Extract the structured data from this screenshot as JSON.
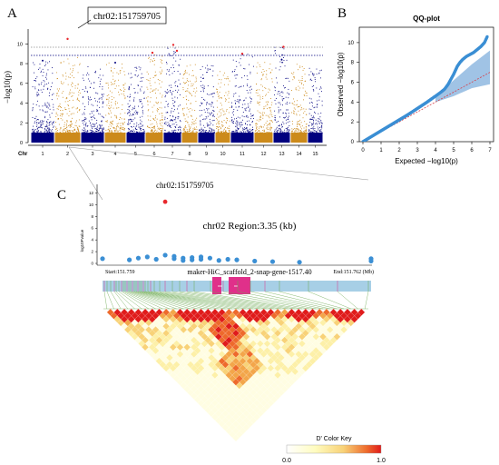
{
  "panels": {
    "a_label": "A",
    "b_label": "B",
    "c_label": "C"
  },
  "chart_data": [
    {
      "type": "scatter",
      "panel": "A",
      "kind": "manhattan",
      "title": "",
      "ylabel": "−log10(p)",
      "xlabel": "Chr",
      "chromosomes": [
        "1",
        "2",
        "3",
        "4",
        "5",
        "6",
        "7",
        "8",
        "9",
        "10",
        "11",
        "12",
        "13",
        "14",
        "15"
      ],
      "yticks": [
        0,
        2,
        4,
        6,
        8,
        10
      ],
      "ylim": [
        0,
        11.5
      ],
      "suggestive_line": 8.1,
      "genomewide_line": 8.8,
      "colors": [
        "#00007f",
        "#cc8a1a"
      ],
      "top_peak_heights": [
        8.3,
        8.7,
        7.8,
        8.2,
        7.7,
        9.0,
        9.8,
        8.0,
        7.9,
        7.3,
        9.0,
        8.2,
        9.7,
        8.0,
        7.6
      ],
      "significant_hits": [
        {
          "chr": "2",
          "value": 10.5,
          "label": "chr02:151759705"
        },
        {
          "chr": "6",
          "value": 9.1
        },
        {
          "chr": "7",
          "value": 9.9
        },
        {
          "chr": "7",
          "value": 9.3
        },
        {
          "chr": "11",
          "value": 9.0
        },
        {
          "chr": "13",
          "value": 9.7
        }
      ],
      "annotation": "chr02:151759705"
    },
    {
      "type": "scatter",
      "panel": "B",
      "kind": "qq",
      "title": "QQ-plot",
      "xlabel": "Expected  −log10(p)",
      "ylabel": "Observed  −log10(p)",
      "xlim": [
        0,
        7
      ],
      "ylim": [
        0,
        11
      ],
      "xticks": [
        0,
        1,
        2,
        3,
        4,
        5,
        6,
        7
      ],
      "yticks": [
        0,
        2,
        4,
        6,
        8,
        10
      ],
      "points": [
        [
          0,
          0
        ],
        [
          0.5,
          0.55
        ],
        [
          1,
          1.1
        ],
        [
          1.5,
          1.65
        ],
        [
          2,
          2.2
        ],
        [
          2.5,
          2.75
        ],
        [
          3,
          3.35
        ],
        [
          3.5,
          3.95
        ],
        [
          4,
          4.6
        ],
        [
          4.3,
          5.0
        ],
        [
          4.5,
          5.3
        ],
        [
          4.7,
          5.8
        ],
        [
          4.85,
          6.3
        ],
        [
          5,
          6.8
        ],
        [
          5.1,
          7.2
        ],
        [
          5.2,
          7.6
        ],
        [
          5.35,
          8.0
        ],
        [
          5.5,
          8.3
        ],
        [
          5.7,
          8.6
        ],
        [
          5.9,
          8.8
        ],
        [
          6.1,
          9.0
        ],
        [
          6.3,
          9.3
        ],
        [
          6.5,
          9.6
        ],
        [
          6.7,
          10.0
        ],
        [
          6.85,
          10.6
        ]
      ],
      "ci_upper": [
        [
          4,
          4.6
        ],
        [
          5,
          6.2
        ],
        [
          6,
          7.8
        ],
        [
          7,
          9.2
        ]
      ],
      "ci_lower": [
        [
          4,
          4.0
        ],
        [
          5,
          4.6
        ],
        [
          6,
          5.4
        ],
        [
          7,
          5.8
        ]
      ],
      "reference_line": [
        [
          0,
          0
        ],
        [
          7,
          7
        ]
      ],
      "point_color": "#3b8fd4",
      "ci_color": "#8fb9e0",
      "line_color": "#d6404a"
    },
    {
      "type": "scatter",
      "panel": "C",
      "kind": "regional",
      "title": "chr02 Region:3.35 (kb)",
      "ylabel": "log10Pvalue",
      "yticks": [
        0,
        2,
        4,
        6,
        8,
        10,
        12
      ],
      "ylim": [
        0,
        13
      ],
      "xlim": [
        151.759,
        151.762
      ],
      "lead_snp": {
        "x": 151.7597,
        "y": 10.5,
        "label": "chr02:151759705"
      },
      "points": [
        [
          151.759,
          0.8
        ],
        [
          151.7593,
          0.6
        ],
        [
          151.7594,
          0.9
        ],
        [
          151.7595,
          1.1
        ],
        [
          151.7596,
          0.7
        ],
        [
          151.7597,
          1.4
        ],
        [
          151.7598,
          0.8
        ],
        [
          151.7598,
          1.2
        ],
        [
          151.7599,
          0.9
        ],
        [
          151.7599,
          0.5
        ],
        [
          151.76,
          1.0
        ],
        [
          151.76,
          0.6
        ],
        [
          151.7601,
          0.7
        ],
        [
          151.7601,
          1.1
        ],
        [
          151.7602,
          0.9
        ],
        [
          151.7603,
          0.5
        ],
        [
          151.7604,
          0.7
        ],
        [
          151.7605,
          0.6
        ],
        [
          151.7607,
          0.4
        ],
        [
          151.7609,
          0.3
        ],
        [
          151.7612,
          0.2
        ],
        [
          151.762,
          0.8
        ],
        [
          151.762,
          0.4
        ]
      ],
      "start_label": "Start:151.759",
      "end_label": "End:151.762 (Mb)",
      "gene_label": "maker-HiC_scaffold_2-snap-gene-1517.40",
      "point_color": "#3b8fd4",
      "lead_color": "#e8282d",
      "gene_bar_color": "#a7cfe6",
      "exon_color": "#e0308a",
      "ld_legend_title": "D' Color Key",
      "ld_legend_min": "0.0",
      "ld_legend_max": "1.0",
      "ld_colors": [
        "#ffffff",
        "#fffcc0",
        "#f8d278",
        "#ee6a2c",
        "#e01b1b"
      ]
    }
  ]
}
